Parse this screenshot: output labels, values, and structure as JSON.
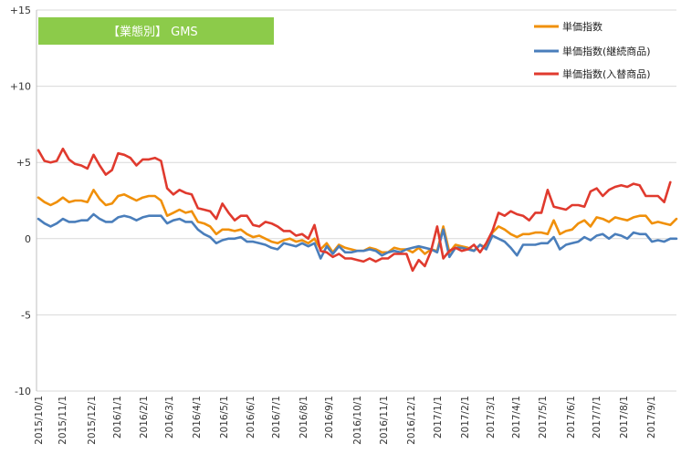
{
  "chart_data": {
    "type": "line",
    "title": "【業態別】 GMS",
    "ylim": [
      -10,
      15
    ],
    "y_ticks": [
      "+15",
      "+10",
      "+5",
      "0",
      "-5",
      "-10"
    ],
    "y_tick_values": [
      15,
      10,
      5,
      0,
      -5,
      -10
    ],
    "x_tick_labels": [
      "2015/10/1",
      "2015/11/1",
      "2015/12/1",
      "2016/1/1",
      "2016/2/1",
      "2016/3/1",
      "2016/4/1",
      "2016/5/1",
      "2016/6/1",
      "2016/7/1",
      "2016/8/1",
      "2016/9/1",
      "2016/10/1",
      "2016/11/1",
      "2016/12/1",
      "2017/1/1",
      "2017/2/1",
      "2017/3/1",
      "2017/4/1",
      "2017/5/1",
      "2017/6/1",
      "2017/7/1",
      "2017/8/1",
      "2017/9/1"
    ],
    "grid": true,
    "legend_position": "top-right",
    "series": [
      {
        "name": "単価指数",
        "color": "#F0900A",
        "values": [
          2.7,
          2.4,
          2.2,
          2.4,
          2.7,
          2.4,
          2.5,
          2.5,
          2.4,
          3.2,
          2.6,
          2.2,
          2.3,
          2.8,
          2.9,
          2.7,
          2.5,
          2.7,
          2.8,
          2.8,
          2.5,
          1.5,
          1.7,
          1.9,
          1.7,
          1.8,
          1.1,
          1.0,
          0.8,
          0.3,
          0.6,
          0.6,
          0.5,
          0.6,
          0.3,
          0.1,
          0.2,
          0.0,
          -0.2,
          -0.3,
          -0.1,
          0.0,
          -0.2,
          -0.1,
          -0.3,
          0.0,
          -0.7,
          -0.3,
          -0.9,
          -0.4,
          -0.6,
          -0.7,
          -0.8,
          -0.8,
          -0.6,
          -0.7,
          -0.9,
          -0.9,
          -0.6,
          -0.7,
          -0.7,
          -0.9,
          -0.6,
          -1.0,
          -0.7,
          -0.8,
          0.8,
          -0.9,
          -0.4,
          -0.5,
          -0.6,
          -0.8,
          -0.4,
          -0.6,
          0.4,
          0.8,
          0.6,
          0.3,
          0.1,
          0.3,
          0.3,
          0.4,
          0.4,
          0.3,
          1.2,
          0.3,
          0.5,
          0.6,
          1.0,
          1.2,
          0.8,
          1.4,
          1.3,
          1.1,
          1.4,
          1.3,
          1.2,
          1.4,
          1.5,
          1.5,
          1.0,
          1.1,
          1.0,
          0.9,
          1.3
        ]
      },
      {
        "name": "単価指数(継続商品)",
        "color": "#4A7EBB",
        "values": [
          1.3,
          1.0,
          0.8,
          1.0,
          1.3,
          1.1,
          1.1,
          1.2,
          1.2,
          1.6,
          1.3,
          1.1,
          1.1,
          1.4,
          1.5,
          1.4,
          1.2,
          1.4,
          1.5,
          1.5,
          1.5,
          1.0,
          1.2,
          1.3,
          1.1,
          1.1,
          0.6,
          0.3,
          0.1,
          -0.3,
          -0.1,
          0.0,
          0.0,
          0.1,
          -0.2,
          -0.2,
          -0.3,
          -0.4,
          -0.6,
          -0.7,
          -0.3,
          -0.4,
          -0.5,
          -0.3,
          -0.5,
          -0.3,
          -1.3,
          -0.5,
          -1.0,
          -0.5,
          -0.9,
          -0.9,
          -0.8,
          -0.8,
          -0.7,
          -0.8,
          -1.1,
          -0.9,
          -0.8,
          -0.9,
          -0.7,
          -0.6,
          -0.5,
          -0.6,
          -0.7,
          -0.9,
          0.6,
          -1.2,
          -0.6,
          -0.6,
          -0.7,
          -0.8,
          -0.4,
          -0.7,
          0.2,
          0.0,
          -0.2,
          -0.6,
          -1.1,
          -0.4,
          -0.4,
          -0.4,
          -0.3,
          -0.3,
          0.1,
          -0.7,
          -0.4,
          -0.3,
          -0.2,
          0.1,
          -0.1,
          0.2,
          0.3,
          0.0,
          0.3,
          0.2,
          0.0,
          0.4,
          0.3,
          0.3,
          -0.2,
          -0.1,
          -0.2,
          0.0,
          0.0
        ]
      },
      {
        "name": "単価指数(入替商品)",
        "color": "#E03A2E",
        "values": [
          5.8,
          5.1,
          5.0,
          5.1,
          5.9,
          5.2,
          4.9,
          4.8,
          4.6,
          5.5,
          4.8,
          4.2,
          4.5,
          5.6,
          5.5,
          5.3,
          4.8,
          5.2,
          5.2,
          5.3,
          5.1,
          3.3,
          2.9,
          3.2,
          3.0,
          2.9,
          2.0,
          1.9,
          1.8,
          1.3,
          2.3,
          1.7,
          1.2,
          1.5,
          1.5,
          0.9,
          0.8,
          1.1,
          1.0,
          0.8,
          0.5,
          0.5,
          0.2,
          0.3,
          0.0,
          0.9,
          -0.8,
          -0.9,
          -1.2,
          -1.0,
          -1.3,
          -1.3,
          -1.4,
          -1.5,
          -1.3,
          -1.5,
          -1.3,
          -1.3,
          -1.0,
          -1.0,
          -1.0,
          -2.1,
          -1.4,
          -1.8,
          -0.8,
          0.8,
          -1.3,
          -0.8,
          -0.6,
          -0.8,
          -0.7,
          -0.4,
          -0.9,
          -0.3,
          0.5,
          1.7,
          1.5,
          1.8,
          1.6,
          1.5,
          1.2,
          1.7,
          1.7,
          3.2,
          2.1,
          2.0,
          1.9,
          2.2,
          2.2,
          2.1,
          3.1,
          3.3,
          2.8,
          3.2,
          3.4,
          3.5,
          3.4,
          3.6,
          3.5,
          2.8,
          2.8,
          2.8,
          2.4,
          3.7
        ]
      }
    ]
  }
}
